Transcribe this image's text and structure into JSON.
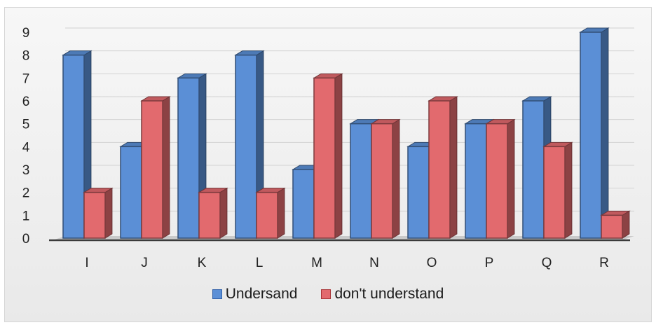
{
  "chart_data": {
    "type": "bar",
    "title": "",
    "xlabel": "",
    "ylabel": "",
    "categories": [
      "I",
      "J",
      "K",
      "L",
      "M",
      "N",
      "O",
      "P",
      "Q",
      "R"
    ],
    "ylim": [
      0,
      9
    ],
    "yticks": [
      "0",
      "1",
      "2",
      "3",
      "4",
      "5",
      "6",
      "7",
      "8",
      "9"
    ],
    "series": [
      {
        "name": "Undersand",
        "values": [
          8,
          4,
          7,
          8,
          3,
          5,
          4,
          5,
          6,
          9
        ],
        "color": "#5b8fd6"
      },
      {
        "name": "don't understand",
        "values": [
          2,
          6,
          2,
          2,
          7,
          5,
          6,
          5,
          4,
          1
        ],
        "color": "#e26a6e"
      }
    ],
    "grid": true,
    "legend": "bottom",
    "style": "3d-clustered-column"
  }
}
